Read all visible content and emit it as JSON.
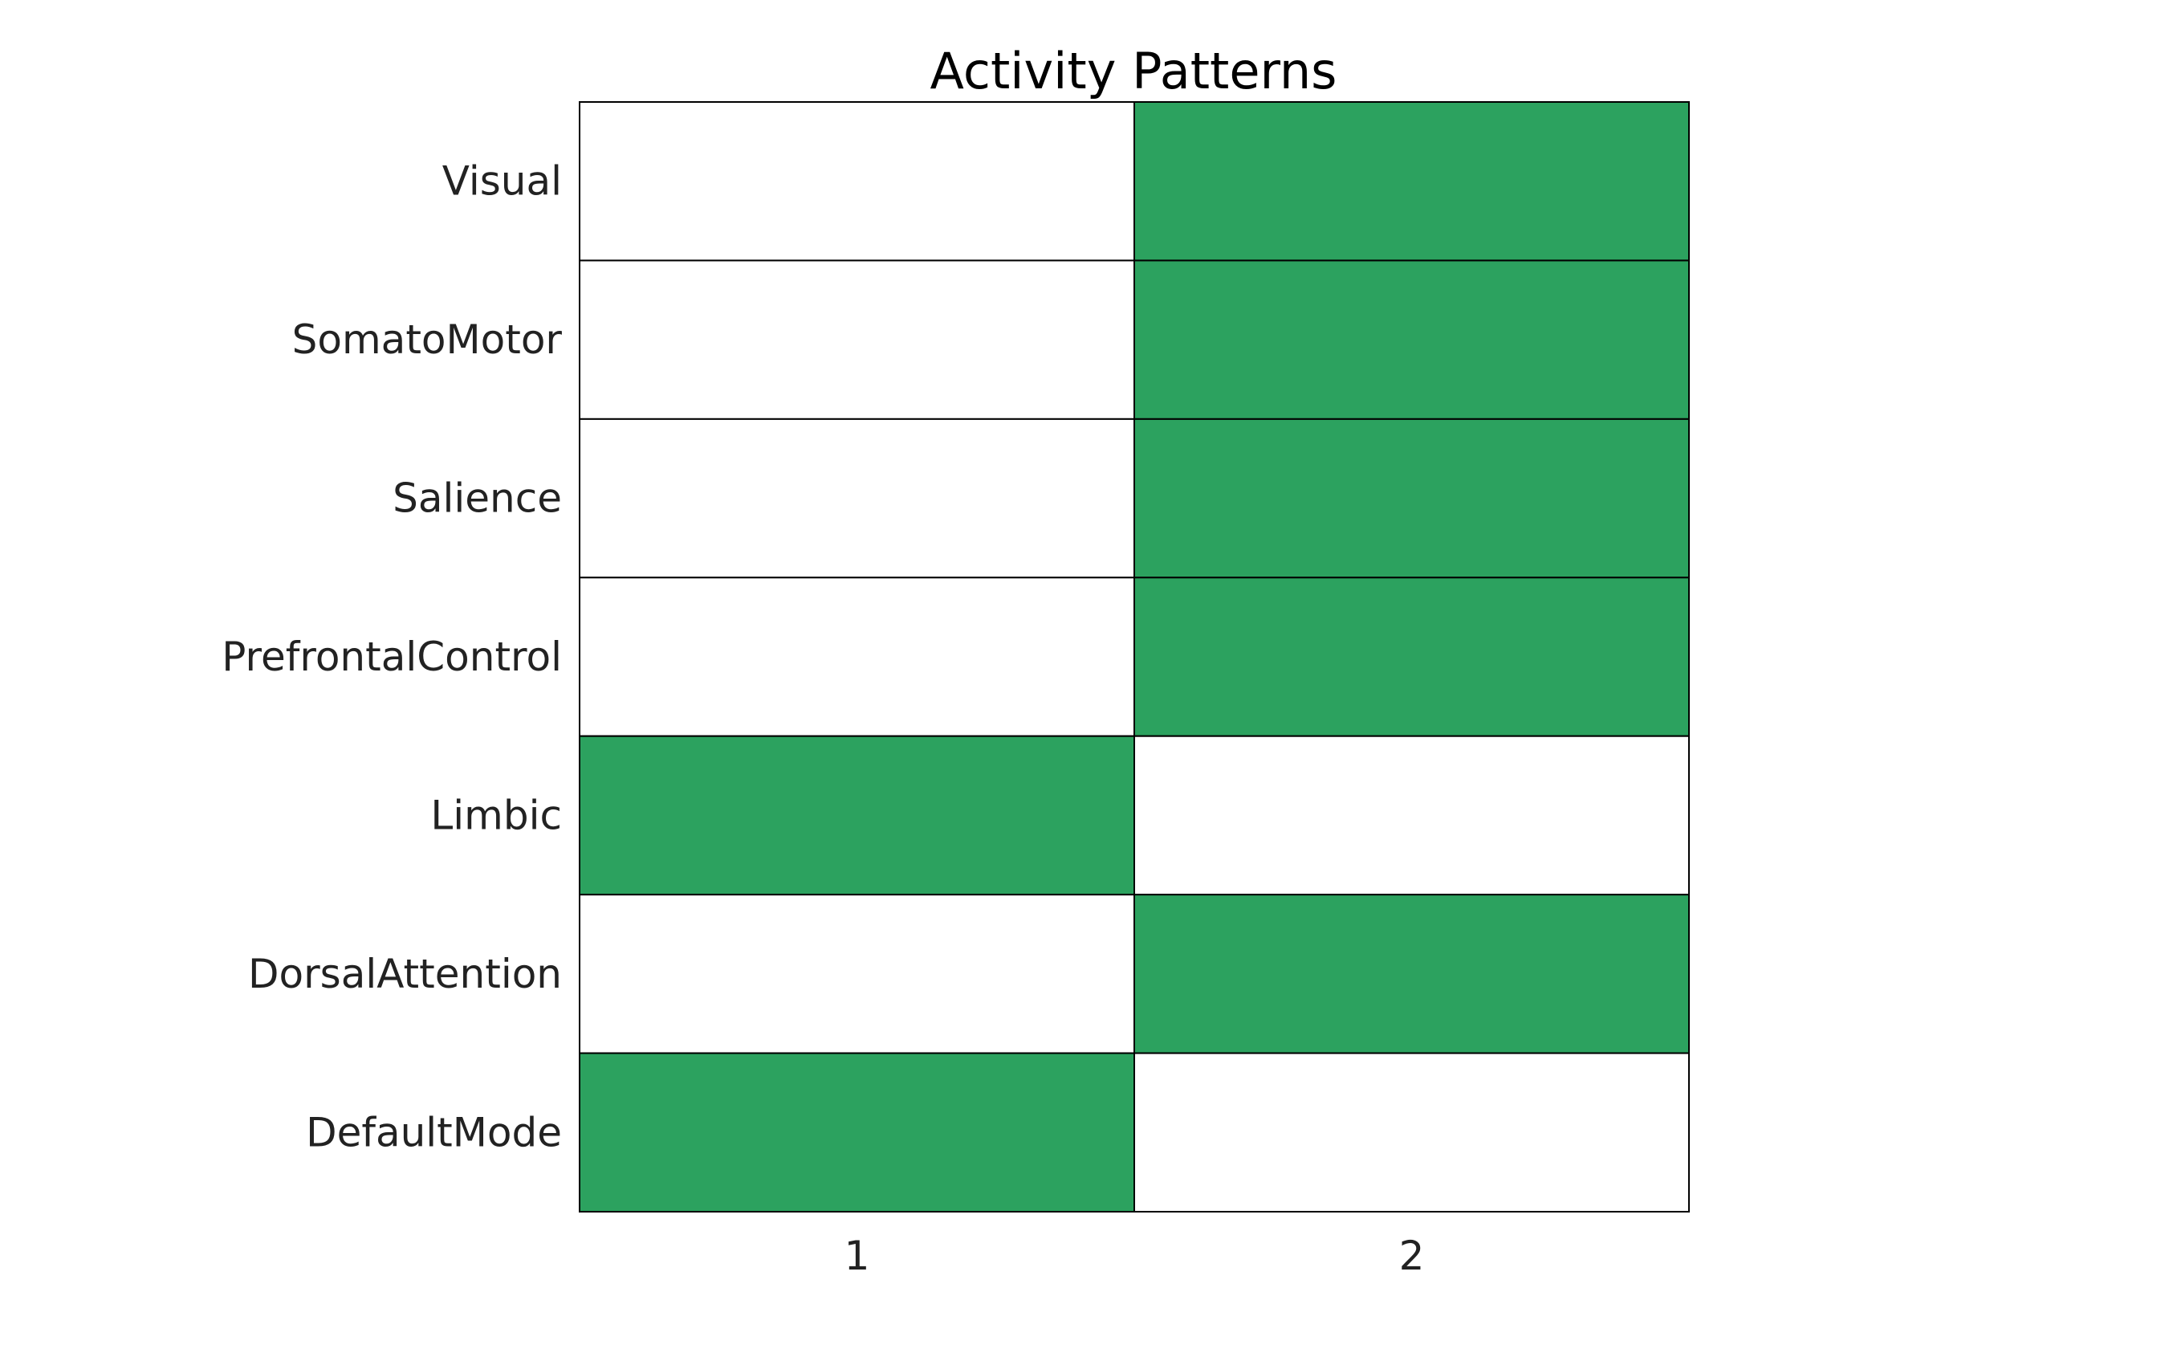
{
  "chart_data": {
    "type": "heatmap",
    "title": "Activity Patterns",
    "xlabel": "",
    "ylabel": "",
    "x_categories": [
      "1",
      "2"
    ],
    "y_categories": [
      "Visual",
      "SomatoMotor",
      "Salience",
      "PrefrontalControl",
      "Limbic",
      "DorsalAttention",
      "DefaultMode"
    ],
    "values": [
      [
        0,
        1
      ],
      [
        0,
        1
      ],
      [
        0,
        1
      ],
      [
        0,
        1
      ],
      [
        1,
        0
      ],
      [
        0,
        1
      ],
      [
        1,
        0
      ]
    ],
    "colors": {
      "active": "#2ca25f",
      "inactive": "#ffffff",
      "gridline": "#000000"
    },
    "grid": true,
    "legend": "none"
  }
}
